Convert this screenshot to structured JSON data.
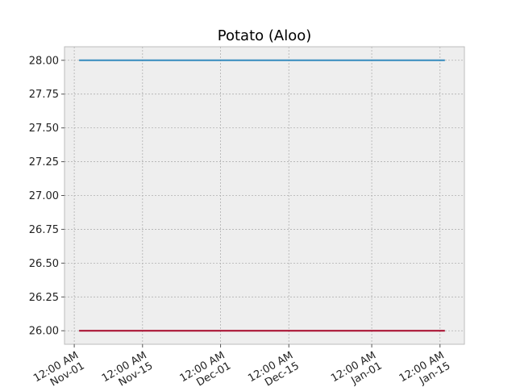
{
  "chart_data": {
    "type": "line",
    "title": "Potato (Aloo)",
    "xlabel": "",
    "ylabel": "",
    "x": [
      "2023-11-02",
      "2024-01-16"
    ],
    "xlim": [
      "2023-10-30",
      "2024-01-20"
    ],
    "ylim": [
      25.9,
      28.1
    ],
    "yticks": [
      26.0,
      26.25,
      26.5,
      26.75,
      27.0,
      27.25,
      27.5,
      27.75,
      28.0
    ],
    "ytick_labels": [
      "26.00",
      "26.25",
      "26.50",
      "26.75",
      "27.00",
      "27.25",
      "27.50",
      "27.75",
      "28.00"
    ],
    "xticks": [
      {
        "date": "2023-11-01",
        "line1": "12:00 AM",
        "line2": "Nov-01"
      },
      {
        "date": "2023-11-15",
        "line1": "12:00 AM",
        "line2": "Nov-15"
      },
      {
        "date": "2023-12-01",
        "line1": "12:00 AM",
        "line2": "Dec-01"
      },
      {
        "date": "2023-12-15",
        "line1": "12:00 AM",
        "line2": "Dec-15"
      },
      {
        "date": "2024-01-01",
        "line1": "12:00 AM",
        "line2": "Jan-01"
      },
      {
        "date": "2024-01-15",
        "line1": "12:00 AM",
        "line2": "Jan-15"
      }
    ],
    "grid": true,
    "series": [
      {
        "values": [
          28.0,
          28.0
        ],
        "color": "#348abd"
      },
      {
        "values": [
          26.0,
          26.0
        ],
        "color": "#a60628"
      }
    ]
  }
}
